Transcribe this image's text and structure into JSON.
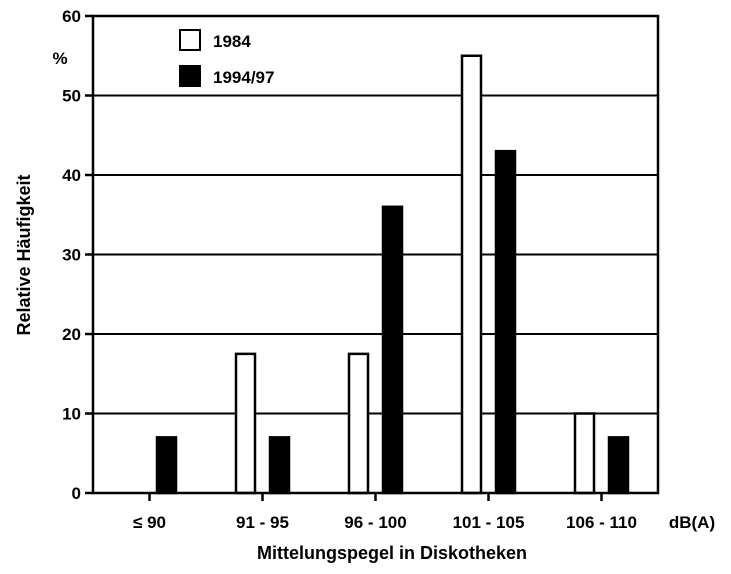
{
  "chart_data": {
    "type": "bar",
    "ylabel": "Relative Häufigkeit",
    "y_unit": "%",
    "xlabel": "Mittelungspegel in Diskotheken",
    "x_unit": "dB(A)",
    "categories": [
      "≤ 90",
      "91 - 95",
      "96 - 100",
      "101 - 105",
      "106 - 110"
    ],
    "series": [
      {
        "name": "1984",
        "fill": "#ffffff",
        "values": [
          0,
          17.5,
          17.5,
          55,
          10
        ]
      },
      {
        "name": "1994/97",
        "fill": "#000000",
        "values": [
          7,
          7,
          36,
          43,
          7
        ]
      }
    ],
    "ylim": [
      0,
      60
    ],
    "yticks": [
      0,
      10,
      20,
      30,
      40,
      50,
      60
    ],
    "grid": "horizontal",
    "legend_position": "top-left"
  }
}
